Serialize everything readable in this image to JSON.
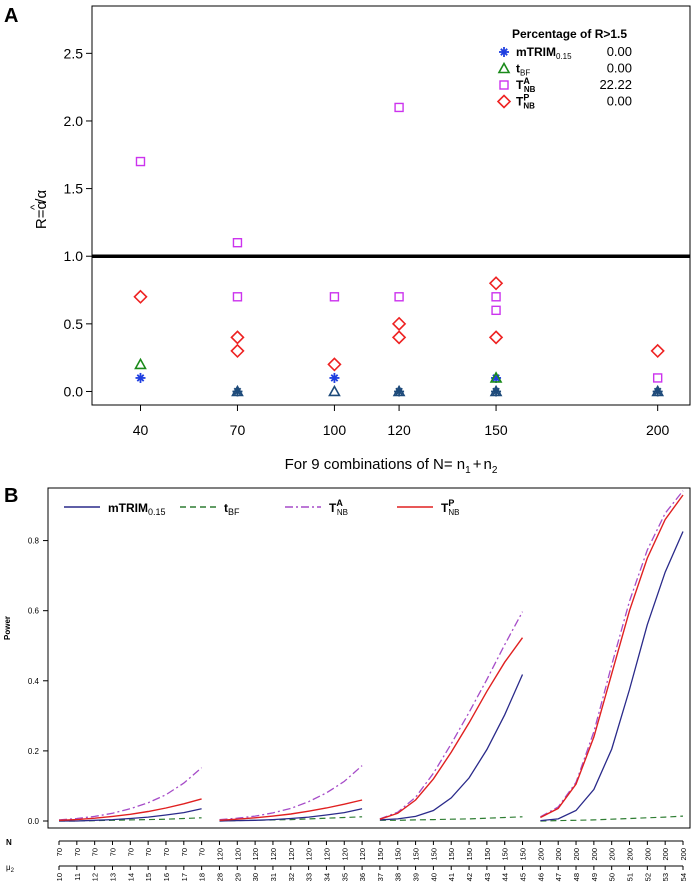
{
  "chart_data": [
    {
      "panel": "A",
      "type": "scatter",
      "ylabel": "R=α̂/α",
      "ylabel_parts": {
        "lhs": "R=",
        "num": "α",
        "hat": "^",
        "slash": "/",
        "den": "α"
      },
      "xlabel_prefix": "For 9 combinations of N=",
      "xlabel_n1": "n",
      "xlabel_s1": "1",
      "xlabel_plus": "+",
      "xlabel_n2": "n",
      "xlabel_s2": "2",
      "xlim": [
        25,
        210
      ],
      "ylim": [
        -0.1,
        2.85
      ],
      "x_ticks": [
        40,
        70,
        100,
        120,
        150,
        200
      ],
      "x_tick_labels": [
        "40",
        "70",
        "100",
        "120",
        "150",
        "200"
      ],
      "y_ticks": [
        0.0,
        0.5,
        1.0,
        1.5,
        2.0,
        2.5
      ],
      "y_tick_labels": [
        "0.0",
        "0.5",
        "1.0",
        "1.5",
        "2.0",
        "2.5"
      ],
      "reference_line": 1.0,
      "colors": {
        "mTRIM": "#1f3fe0",
        "tBF": "#1a8a1a",
        "TA": "#cc33ee",
        "TP": "#ee2222",
        "overlap": "#1d4a7a"
      },
      "legend_title": "Percentage of R>1.5",
      "legend": [
        {
          "key": "mTRIM",
          "label": "mTRIM",
          "sub": "0.15",
          "sup": "",
          "value": "0.00"
        },
        {
          "key": "tBF",
          "label": "t",
          "sub": "BF",
          "sup": "",
          "value": "0.00"
        },
        {
          "key": "TA",
          "label": "T",
          "sub": "NB",
          "sup": "A",
          "value": "22.22"
        },
        {
          "key": "TP",
          "label": "T",
          "sub": "NB",
          "sup": "P",
          "value": "0.00"
        }
      ],
      "series": [
        {
          "name": "mTRIM",
          "marker": "star",
          "points": [
            [
              40,
              0.1
            ],
            [
              70,
              0.0
            ],
            [
              100,
              0.1
            ],
            [
              120,
              0.0
            ],
            [
              150,
              0.1
            ],
            [
              150,
              0.0
            ],
            [
              200,
              0.0
            ]
          ]
        },
        {
          "name": "tBF",
          "marker": "triangle",
          "points": [
            [
              40,
              0.2
            ],
            [
              70,
              0.0
            ],
            [
              100,
              0.0
            ],
            [
              120,
              0.0
            ],
            [
              150,
              0.1
            ],
            [
              150,
              0.0
            ],
            [
              200,
              0.0
            ]
          ]
        },
        {
          "name": "TA",
          "marker": "square",
          "points": [
            [
              40,
              1.7
            ],
            [
              70,
              1.1
            ],
            [
              70,
              0.7
            ],
            [
              100,
              0.7
            ],
            [
              120,
              2.1
            ],
            [
              120,
              0.7
            ],
            [
              150,
              0.7
            ],
            [
              150,
              0.6
            ],
            [
              200,
              0.1
            ]
          ]
        },
        {
          "name": "TP",
          "marker": "diamond",
          "points": [
            [
              40,
              0.7
            ],
            [
              70,
              0.4
            ],
            [
              70,
              0.3
            ],
            [
              100,
              0.2
            ],
            [
              120,
              0.5
            ],
            [
              120,
              0.4
            ],
            [
              150,
              0.8
            ],
            [
              150,
              0.4
            ],
            [
              200,
              0.3
            ]
          ]
        }
      ]
    },
    {
      "panel": "B",
      "type": "line",
      "ylabel": "Power",
      "ylim": [
        -0.02,
        0.95
      ],
      "y_ticks": [
        0.0,
        0.2,
        0.4,
        0.6,
        0.8
      ],
      "y_tick_labels": [
        "0.0",
        "0.2",
        "0.4",
        "0.6",
        "0.8"
      ],
      "row_label_N": "N",
      "row_label_mu": "μ",
      "row_label_mu_sub": "2",
      "colors": {
        "mTRIM": "#2a2a8a",
        "tBF": "#2e7d32",
        "TA": "#a64cc8",
        "TP": "#e02020"
      },
      "legend": [
        {
          "key": "mTRIM",
          "label": "mTRIM",
          "sub": "0.15",
          "sup": "",
          "dash": ""
        },
        {
          "key": "tBF",
          "label": "t",
          "sub": "BF",
          "sup": "",
          "dash": "6,4"
        },
        {
          "key": "TA",
          "label": "T",
          "sub": "NB",
          "sup": "A",
          "dash": "8,3,2,3"
        },
        {
          "key": "TP",
          "label": "T",
          "sub": "NB",
          "sup": "P",
          "dash": ""
        }
      ],
      "groups": [
        {
          "N": [
            "70",
            "70",
            "70",
            "70",
            "70",
            "70",
            "70",
            "70",
            "70"
          ],
          "mu2": [
            "10",
            "11",
            "12",
            "13",
            "14",
            "15",
            "16",
            "17",
            "18"
          ],
          "series": {
            "mTRIM": [
              0.0,
              0.0,
              0.002,
              0.004,
              0.007,
              0.011,
              0.017,
              0.024,
              0.035
            ],
            "tBF": [
              0.0,
              0.0,
              0.001,
              0.002,
              0.003,
              0.004,
              0.005,
              0.007,
              0.009
            ],
            "TA": [
              0.003,
              0.007,
              0.013,
              0.022,
              0.035,
              0.052,
              0.075,
              0.108,
              0.152
            ],
            "TP": [
              0.002,
              0.004,
              0.008,
              0.013,
              0.019,
              0.027,
              0.037,
              0.049,
              0.063
            ]
          }
        },
        {
          "N": [
            "120",
            "120",
            "120",
            "120",
            "120",
            "120",
            "120",
            "120",
            "120"
          ],
          "mu2": [
            "28",
            "29",
            "30",
            "31",
            "32",
            "33",
            "34",
            "35",
            "36"
          ],
          "series": {
            "mTRIM": [
              0.0,
              0.001,
              0.002,
              0.004,
              0.007,
              0.011,
              0.017,
              0.024,
              0.035
            ],
            "tBF": [
              0.0,
              0.001,
              0.002,
              0.003,
              0.004,
              0.006,
              0.008,
              0.01,
              0.012
            ],
            "TA": [
              0.004,
              0.008,
              0.014,
              0.023,
              0.036,
              0.055,
              0.08,
              0.113,
              0.158
            ],
            "TP": [
              0.002,
              0.005,
              0.009,
              0.014,
              0.02,
              0.028,
              0.037,
              0.048,
              0.06
            ]
          }
        },
        {
          "N": [
            "150",
            "150",
            "150",
            "150",
            "150",
            "150",
            "150",
            "150",
            "150"
          ],
          "mu2": [
            "37",
            "38",
            "39",
            "40",
            "41",
            "42",
            "43",
            "44",
            "45"
          ],
          "series": {
            "mTRIM": [
              0.003,
              0.006,
              0.013,
              0.03,
              0.066,
              0.123,
              0.204,
              0.303,
              0.418
            ],
            "tBF": [
              0.002,
              0.002,
              0.003,
              0.004,
              0.005,
              0.006,
              0.008,
              0.01,
              0.012
            ],
            "TA": [
              0.006,
              0.025,
              0.068,
              0.136,
              0.22,
              0.31,
              0.404,
              0.503,
              0.597
            ],
            "TP": [
              0.005,
              0.022,
              0.06,
              0.12,
              0.196,
              0.28,
              0.37,
              0.453,
              0.523
            ]
          }
        },
        {
          "N": [
            "200",
            "200",
            "200",
            "200",
            "200",
            "200",
            "200",
            "200",
            "200"
          ],
          "mu2": [
            "46",
            "47",
            "48",
            "49",
            "50",
            "51",
            "52",
            "53",
            "54"
          ],
          "series": {
            "mTRIM": [
              0.001,
              0.006,
              0.03,
              0.09,
              0.205,
              0.375,
              0.56,
              0.71,
              0.826
            ],
            "tBF": [
              0.0,
              0.001,
              0.002,
              0.003,
              0.005,
              0.007,
              0.009,
              0.011,
              0.014
            ],
            "TA": [
              0.012,
              0.04,
              0.11,
              0.255,
              0.445,
              0.627,
              0.773,
              0.878,
              0.942
            ],
            "TP": [
              0.01,
              0.036,
              0.105,
              0.24,
              0.42,
              0.6,
              0.75,
              0.86,
              0.93
            ]
          }
        }
      ]
    }
  ],
  "labels": {
    "panel_a": "A",
    "panel_b": "B"
  }
}
